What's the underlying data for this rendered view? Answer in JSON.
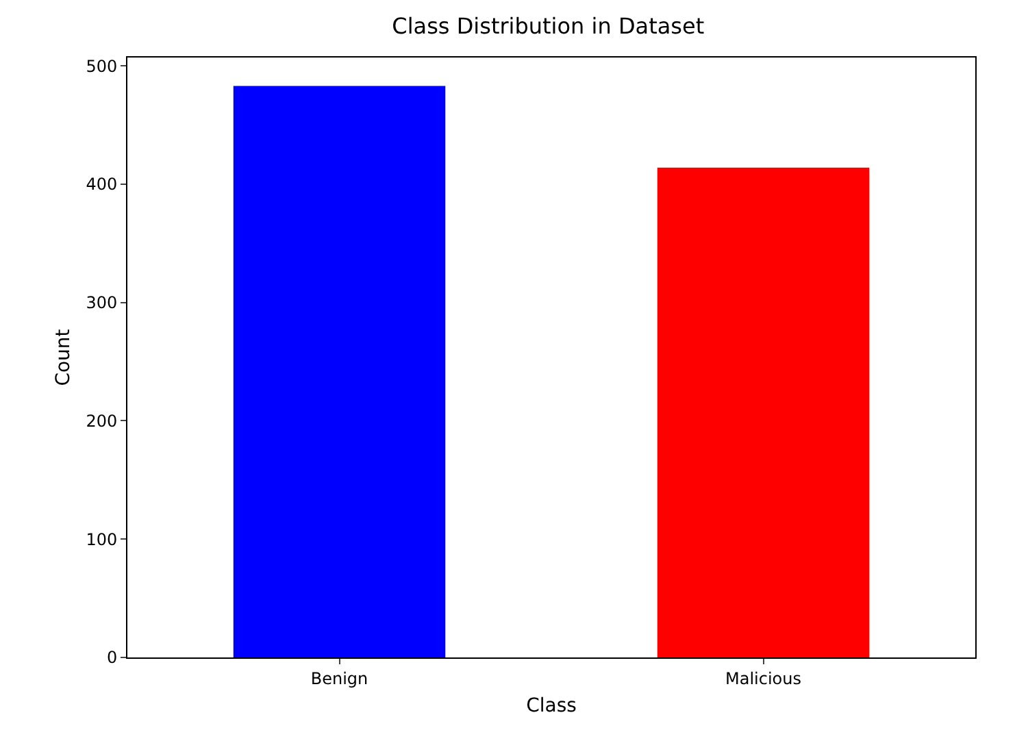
{
  "chart_data": {
    "type": "bar",
    "title": "Class Distribution in Dataset",
    "xlabel": "Class",
    "ylabel": "Count",
    "categories": [
      "Benign",
      "Malicious"
    ],
    "series": [
      {
        "colors": [
          "#0000ff",
          "#ff0000"
        ],
        "values": [
          483,
          414
        ]
      }
    ],
    "ylim": [
      0,
      507
    ],
    "yticks": [
      0,
      100,
      200,
      300,
      400,
      500
    ]
  }
}
